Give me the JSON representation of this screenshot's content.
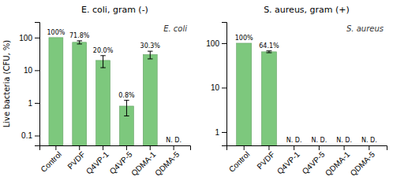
{
  "chart_data": [
    {
      "type": "bar",
      "title": "E. coli, gram (-)",
      "y_label": "Live bacteria (CFU, %)",
      "categories": [
        "Control",
        "PVDF",
        "Q4VP-1",
        "Q4VP-5",
        "QDMA-1",
        "QDMA-5"
      ],
      "values": [
        100,
        71.8,
        20.0,
        0.8,
        30.3,
        null
      ],
      "errors": [
        0,
        8,
        8,
        0.4,
        8,
        0
      ],
      "value_labels": [
        "100%",
        "71.8%",
        "20.0%",
        "0.8%",
        "30.3%",
        "N. D."
      ],
      "data_labels": true,
      "annotations": [
        "E. coli"
      ],
      "color": "#7DC87D",
      "log": "y",
      "grid": false,
      "ylim": [
        0.05,
        300
      ],
      "yticks": [
        0.1,
        1,
        10,
        100
      ]
    },
    {
      "type": "bar",
      "title": "S. aureus, gram (+)",
      "categories": [
        "Control",
        "PVDF",
        "Q4VP-1",
        "Q4VP-5",
        "QDMA-1",
        "QDMA-5"
      ],
      "values": [
        100,
        64.1,
        null,
        null,
        null,
        null
      ],
      "errors": [
        0,
        3,
        0,
        0,
        0,
        0
      ],
      "value_labels": [
        "100%",
        "64.1%",
        "N. D.",
        "N. D.",
        "N. D.",
        "N. D."
      ],
      "data_labels": true,
      "annotations": [
        "S. aureus"
      ],
      "color": "#7DC87D",
      "log": "y",
      "grid": false,
      "ylim": [
        0.5,
        300
      ],
      "yticks": [
        1,
        10,
        100
      ]
    }
  ]
}
